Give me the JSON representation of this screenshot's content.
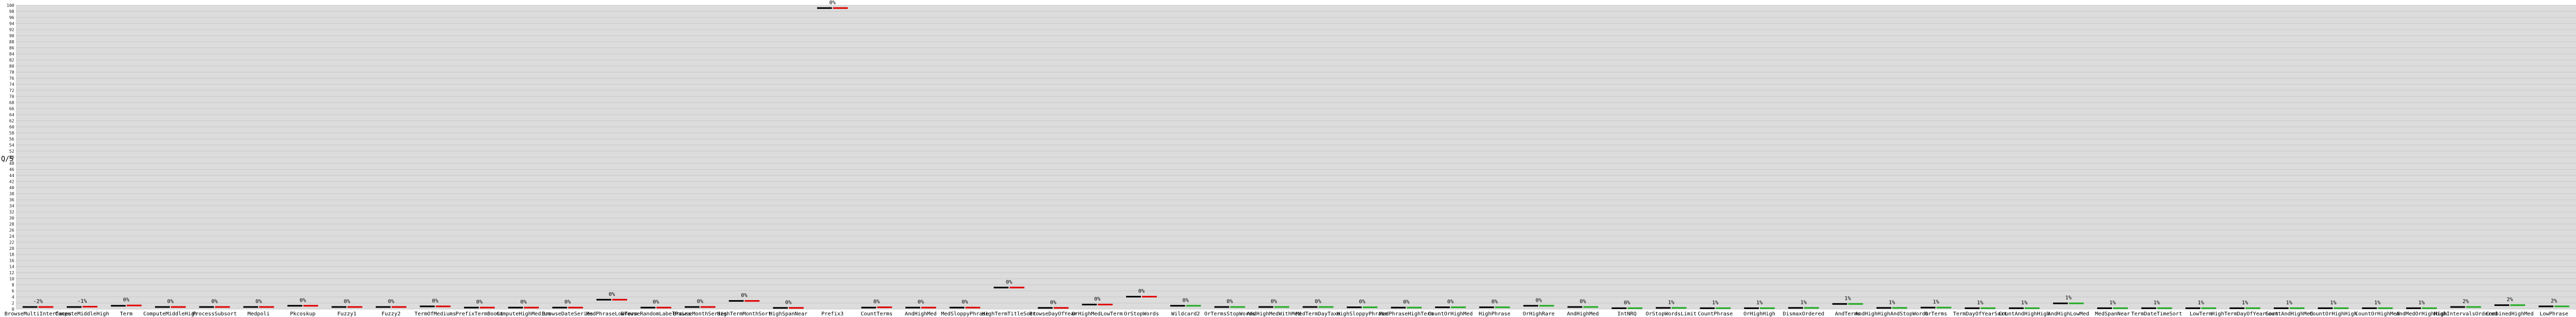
{
  "chart_data": {
    "type": "bar",
    "ylabel": "Q/S",
    "ylim": [
      0,
      100
    ],
    "grid": true,
    "colors": {
      "base": "#000000",
      "red": "#e00000",
      "green": "#22aa22",
      "background": "#dcdcdc"
    },
    "categories": [
      "BrowseMultiInterfaces",
      "ComputeMiddleHigh",
      "Term",
      "ComputeMiddleHigh",
      "ProcessSubsort",
      "Medpoli",
      "Pkcoskup",
      "Fuzzy1",
      "Fuzzy2",
      "TermOfMediums",
      "PrefixTermBoost",
      "ComputeHighMedium",
      "BrowseDateSeries",
      "MedPhraseLowTerm",
      "BrowseRandomLabelPairs",
      "BrowseMonthSeries",
      "HighTermMonthSort",
      "HighSpanNear",
      "Prefix3",
      "CountTerms",
      "AndHighMed",
      "MedSloppyPhrase",
      "HighTermTitleSort",
      "BrowseDayOfYear",
      "OrHighMedLowTerm",
      "OrStopWords",
      "Wildcard2",
      "OrTermsStopWords",
      "AndHighMedWithMed",
      "MedTermDayTaxo",
      "HighSloppyPhrase",
      "MedPhraseHighTerm",
      "CountOrHighMed",
      "HighPhrase",
      "OrHighRare",
      "AndHighMed",
      "IntNRQ",
      "OrStopWordsLimit",
      "CountPhrase",
      "OrHighHigh",
      "DismaxOrdered",
      "AndTerms",
      "AndHighHighAndStopWords",
      "OrTerms",
      "TermDayOfYearSort",
      "CountAndHighHigh",
      "AndHighLowMed",
      "MedSpanNear",
      "TermDateTimeSort",
      "LowTerm",
      "HighTermDayOfYearSort",
      "CountAndHighMed",
      "CountOrHighHigh",
      "CountOrHighMed",
      "AndMedOrHighHigh",
      "HighIntervalsOrdered",
      "CombinedHighMed",
      "LowPhrase"
    ],
    "series": [
      {
        "name": "",
        "values": [
          0.6,
          0.6,
          1.0,
          0.6,
          0.6,
          0.6,
          1.0,
          0.6,
          0.6,
          0.8,
          0.4,
          0.4,
          0.4,
          3.0,
          0.4,
          0.6,
          2.6,
          0.3,
          99.0,
          0.4,
          0.4,
          0.4,
          7.0,
          0.3,
          1.4,
          4.0,
          1.0,
          0.6,
          0.6,
          0.6,
          0.5,
          0.4,
          0.5,
          0.5,
          1.0,
          0.6,
          0.2,
          0.3,
          0.2,
          0.2,
          0.3,
          1.6,
          0.3,
          0.4,
          0.2,
          0.2,
          1.8,
          0.2,
          0.2,
          0.2,
          0.2,
          0.2,
          0.2,
          0.2,
          0.2,
          0.6,
          1.2,
          0.8
        ]
      },
      {
        "name": "",
        "values": [
          0.6,
          0.7,
          1.1,
          0.6,
          0.6,
          0.6,
          1.0,
          0.6,
          0.6,
          0.8,
          0.4,
          0.4,
          0.4,
          3.0,
          0.4,
          0.6,
          2.6,
          0.3,
          99.0,
          0.5,
          0.4,
          0.4,
          7.0,
          0.3,
          1.4,
          4.0,
          1.0,
          0.6,
          0.6,
          0.6,
          0.5,
          0.4,
          0.5,
          0.5,
          1.0,
          0.6,
          0.2,
          0.3,
          0.2,
          0.2,
          0.3,
          1.6,
          0.3,
          0.4,
          0.2,
          0.2,
          1.8,
          0.2,
          0.2,
          0.2,
          0.2,
          0.2,
          0.2,
          0.2,
          0.2,
          0.6,
          1.2,
          0.8
        ]
      }
    ],
    "delta_labels": [
      "-2%",
      "-1%",
      "0%",
      "0%",
      "0%",
      "0%",
      "0%",
      "0%",
      "0%",
      "0%",
      "0%",
      "0%",
      "0%",
      "0%",
      "0%",
      "0%",
      "0%",
      "0%",
      "0%",
      "0%",
      "0%",
      "0%",
      "0%",
      "0%",
      "0%",
      "0%",
      "0%",
      "0%",
      "0%",
      "0%",
      "0%",
      "0%",
      "0%",
      "0%",
      "0%",
      "0%",
      "0%",
      "1%",
      "1%",
      "1%",
      "1%",
      "1%",
      "1%",
      "1%",
      "1%",
      "1%",
      "1%",
      "1%",
      "1%",
      "1%",
      "1%",
      "1%",
      "1%",
      "1%",
      "1%",
      "2%",
      "2%",
      "2%"
    ],
    "delta_colors": [
      "red",
      "red",
      "red",
      "red",
      "red",
      "red",
      "red",
      "red",
      "red",
      "red",
      "red",
      "red",
      "red",
      "red",
      "red",
      "red",
      "red",
      "red",
      "red",
      "red",
      "red",
      "red",
      "red",
      "red",
      "red",
      "red",
      "green",
      "green",
      "green",
      "green",
      "green",
      "green",
      "green",
      "green",
      "green",
      "green",
      "green",
      "green",
      "green",
      "green",
      "green",
      "green",
      "green",
      "green",
      "green",
      "green",
      "green",
      "green",
      "green",
      "green",
      "green",
      "green",
      "green",
      "green",
      "green",
      "green",
      "green",
      "green"
    ]
  }
}
